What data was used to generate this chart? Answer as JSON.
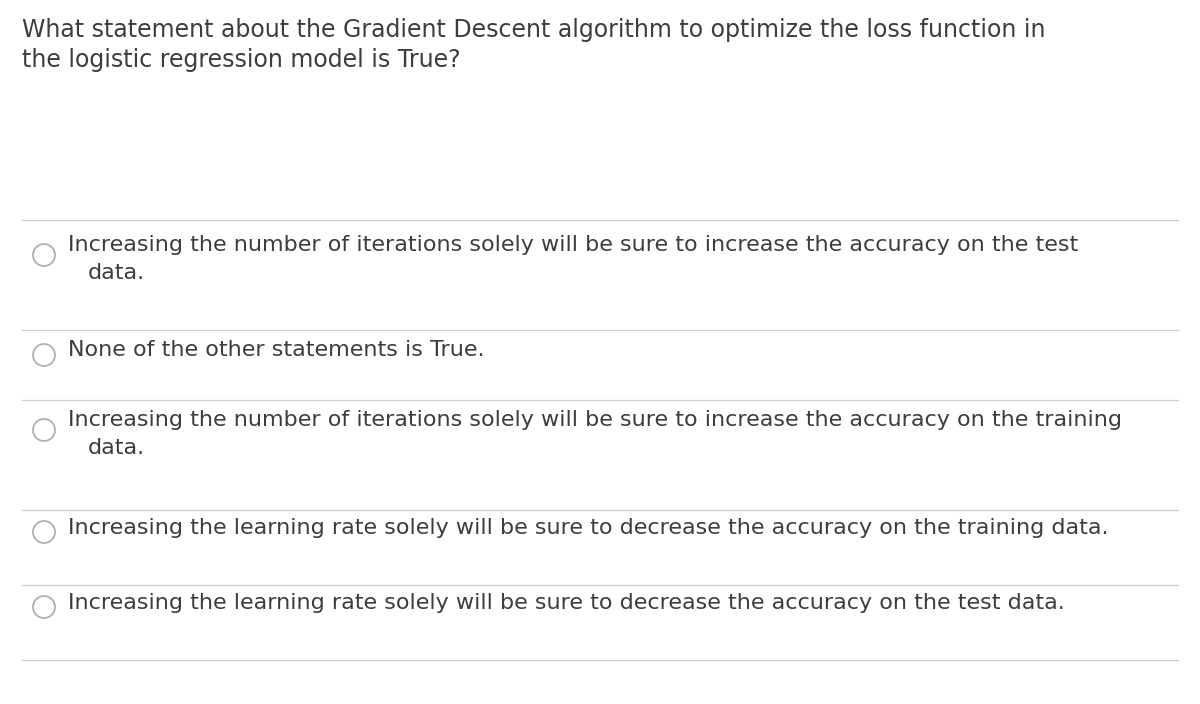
{
  "question_line1": "What statement about the Gradient Descent algorithm to optimize the loss function in",
  "question_line2": "the logistic regression model is True?",
  "options": [
    {
      "line1": "Increasing the number of iterations solely will be sure to increase the accuracy on the test",
      "line2": "data.",
      "two_lines": true
    },
    {
      "line1": "None of the other statements is True.",
      "line2": "",
      "two_lines": false
    },
    {
      "line1": "Increasing the number of iterations solely will be sure to increase the accuracy on the training",
      "line2": "data.",
      "two_lines": true
    },
    {
      "line1": "Increasing the learning rate solely will be sure to decrease the accuracy on the training data.",
      "line2": "",
      "two_lines": false
    },
    {
      "line1": "Increasing the learning rate solely will be sure to decrease the accuracy on the test data.",
      "line2": "",
      "two_lines": false
    }
  ],
  "background_color": "#ffffff",
  "text_color": "#3d3d3d",
  "line_color": "#d0d0d0",
  "circle_color": "#b0b0b0",
  "question_fontsize": 17,
  "option_fontsize": 16,
  "fig_width": 12.0,
  "fig_height": 7.04,
  "dpi": 100
}
